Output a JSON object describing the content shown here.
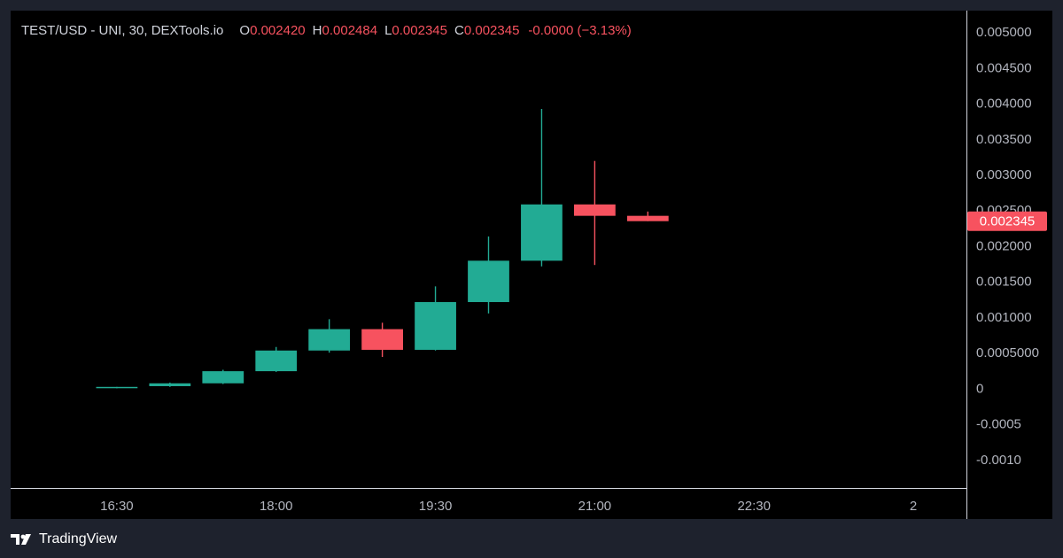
{
  "legend": {
    "symbol": "TEST/USD - UNI, 30, DEXTools.io",
    "open_label": "O",
    "open": "0.002420",
    "high_label": "H",
    "high": "0.002484",
    "low_label": "L",
    "low": "0.002345",
    "close_label": "C",
    "close": "0.002345",
    "change": "-0.0000 (−3.13%)"
  },
  "footer": {
    "brand": "TradingView",
    "logo_icon": "tradingview-logo-icon"
  },
  "colors": {
    "up": "#22ab94",
    "down": "#f7525f",
    "background": "#000000",
    "axis_text": "#b2b5be",
    "axis_line": "#d1d4dc"
  },
  "chart_data": {
    "type": "candlestick",
    "title": "TEST/USD - UNI, 30, DEXTools.io",
    "interval_minutes": 30,
    "ylim": [
      -0.00125,
      0.0051
    ],
    "y_ticks": [
      "0.005000",
      "0.004500",
      "0.004000",
      "0.003500",
      "0.003000",
      "0.002500",
      "0.002000",
      "0.001500",
      "0.001000",
      "0.0005000",
      "0",
      "-0.0005",
      "-0.0010"
    ],
    "y_tick_values": [
      0.005,
      0.0045,
      0.004,
      0.0035,
      0.003,
      0.0025,
      0.002,
      0.0015,
      0.001,
      0.0005,
      0,
      -0.0005,
      -0.001
    ],
    "x_ticks": [
      {
        "label": "16:30",
        "time": "16:30"
      },
      {
        "label": "18:00",
        "time": "18:00"
      },
      {
        "label": "19:30",
        "time": "19:30"
      },
      {
        "label": "21:00",
        "time": "21:00"
      },
      {
        "label": "22:30",
        "time": "22:30"
      },
      {
        "label": "2",
        "time": "24:00"
      }
    ],
    "x_range": [
      "15:30",
      "24:30"
    ],
    "last_price_label": "0.002345",
    "candles": [
      {
        "time": "16:30",
        "open": 1e-05,
        "high": 2e-05,
        "low": 0.0,
        "close": 2e-05
      },
      {
        "time": "17:00",
        "open": 3e-05,
        "high": 8e-05,
        "low": 2e-05,
        "close": 7e-05
      },
      {
        "time": "17:30",
        "open": 7e-05,
        "high": 0.00026,
        "low": 6e-05,
        "close": 0.00024
      },
      {
        "time": "18:00",
        "open": 0.00024,
        "high": 0.00058,
        "low": 0.00023,
        "close": 0.00053
      },
      {
        "time": "18:30",
        "open": 0.00053,
        "high": 0.00097,
        "low": 0.0005,
        "close": 0.00083
      },
      {
        "time": "19:00",
        "open": 0.00083,
        "high": 0.00092,
        "low": 0.00044,
        "close": 0.00054
      },
      {
        "time": "19:30",
        "open": 0.00054,
        "high": 0.00143,
        "low": 0.00053,
        "close": 0.00121
      },
      {
        "time": "20:00",
        "open": 0.00121,
        "high": 0.00213,
        "low": 0.00105,
        "close": 0.00179
      },
      {
        "time": "20:30",
        "open": 0.00179,
        "high": 0.00392,
        "low": 0.00171,
        "close": 0.00258
      },
      {
        "time": "21:00",
        "open": 0.00258,
        "high": 0.00319,
        "low": 0.00173,
        "close": 0.00242
      },
      {
        "time": "21:30",
        "open": 0.00242,
        "high": 0.00248,
        "low": 0.002345,
        "close": 0.002345
      }
    ]
  }
}
